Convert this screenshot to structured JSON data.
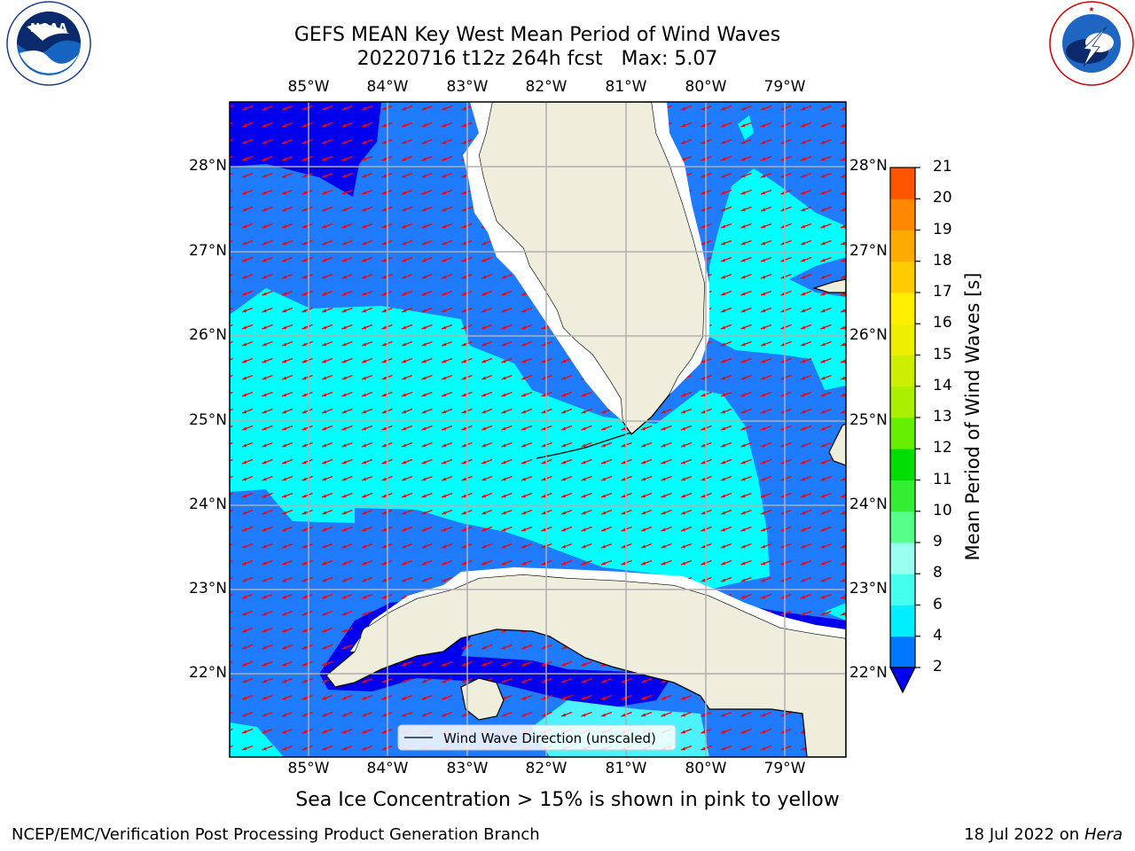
{
  "title_line1": "GEFS MEAN Key West Mean Period of Wind Waves",
  "title_line2": "20220716 t12z 264h fcst   Max: 5.07",
  "subtitle": "Sea Ice Concentration > 15% is shown in pink to yellow",
  "footer": {
    "left": "NCEP/EMC/Verification Post Processing Product Generation Branch",
    "date": "18 Jul 2022 on",
    "machine": "Hera"
  },
  "legend": {
    "label": "Wind Wave Direction (unscaled)"
  },
  "map": {
    "lon_labels": [
      "85°W",
      "84°W",
      "83°W",
      "82°W",
      "81°W",
      "80°W",
      "79°W"
    ],
    "lat_labels": [
      "28°N",
      "27°N",
      "26°N",
      "25°N",
      "24°N",
      "23°N",
      "22°N"
    ],
    "lon_range": [
      -86.0,
      -78.25
    ],
    "lat_range": [
      21.05,
      28.78
    ]
  },
  "colorbar": {
    "title": "Mean Period of Wind Waves [s]",
    "ticks": [
      "2",
      "4",
      "6",
      "8",
      "9",
      "10",
      "11",
      "12",
      "13",
      "14",
      "15",
      "16",
      "17",
      "18",
      "19",
      "20",
      "21"
    ],
    "colors": [
      "#0077ff",
      "#00eeff",
      "#44ffee",
      "#99ffee",
      "#55ff88",
      "#33ee33",
      "#00dd00",
      "#66ee00",
      "#aaee00",
      "#ccee00",
      "#eeee00",
      "#ffee00",
      "#ffcc00",
      "#ffaa00",
      "#ff8800",
      "#ff5500",
      "#ff2200",
      "#ff0000"
    ],
    "under_color": "#0000ee"
  },
  "colors": {
    "deep_blue": "#0000ee",
    "mid_blue": "#1f7bff",
    "cyan": "#00ffff",
    "light_cyan": "#4cf2ff",
    "land": "#efeddc",
    "arrow": "#ff0000",
    "grid": "#b0b0b0"
  },
  "logos": {
    "noaa_text": "NOAA",
    "noaa_ring": "NATIONAL OCEANIC AND ATMOSPHERIC ADMINISTRATION · U.S. DEPARTMENT OF COMMERCE",
    "nws_ring": "NATIONAL WEATHER SERVICE"
  }
}
